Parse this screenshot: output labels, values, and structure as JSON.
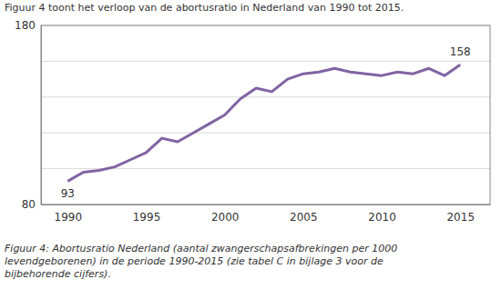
{
  "chart_data": {
    "type": "line",
    "x": [
      1990,
      1991,
      1992,
      1993,
      1994,
      1995,
      1996,
      1997,
      1998,
      1999,
      2000,
      2001,
      2002,
      2003,
      2004,
      2005,
      2006,
      2007,
      2008,
      2009,
      2010,
      2011,
      2012,
      2013,
      2014,
      2015
    ],
    "values": [
      93,
      98,
      99,
      101,
      105,
      109,
      117,
      115,
      120,
      125,
      130,
      139,
      145,
      143,
      150,
      153,
      154,
      156,
      154,
      153,
      152,
      154,
      153,
      156,
      152,
      158
    ],
    "color": "#8064a2",
    "xlim": [
      1988.3,
      2016.9
    ],
    "xticks": [
      1990,
      1995,
      2000,
      2005,
      2010,
      2015
    ],
    "ylim": [
      80,
      180
    ],
    "yticks": [
      80,
      {
        "value": 100,
        "label": null
      },
      {
        "value": 120,
        "label": null
      },
      {
        "value": 140,
        "label": null
      },
      {
        "value": 160,
        "label": null
      },
      180
    ],
    "grid": true,
    "annotations": [
      {
        "x": 1990,
        "y": 93,
        "text": "93"
      },
      {
        "x": 2015,
        "y": 158,
        "text": "158"
      }
    ]
  },
  "intro": "Figuur 4 toont het verloop van de abortusratio in Nederland van 1990 tot 2015.",
  "caption": [
    "Figuur 4: Abortusratio Nederland (aantal zwangerschapsafbrekingen per 1000",
    "levendgeborenen) in de periode 1990-2015 (zie tabel C in bijlage 3 voor de",
    "bijbehorende cijfers)."
  ]
}
